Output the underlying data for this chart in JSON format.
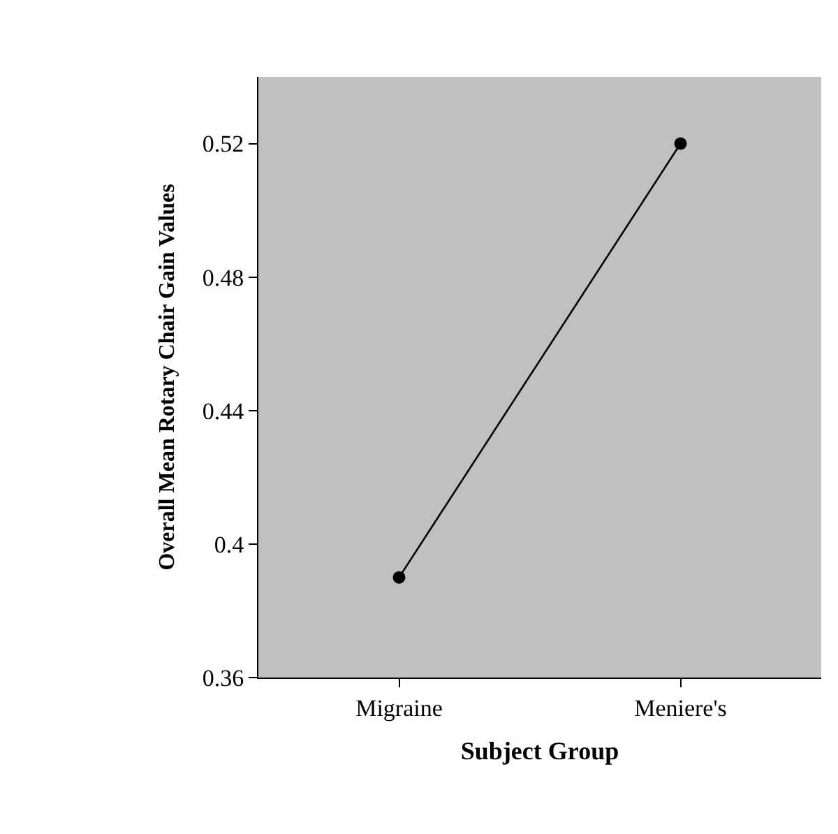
{
  "chart_data": {
    "type": "line",
    "xlabel": "Subject Group",
    "ylabel": "Overall Mean Rotary Chair Gain Values",
    "categories": [
      "Migraine",
      "Meniere's"
    ],
    "series": [
      {
        "color": "#000000",
        "values": [
          0.39,
          0.52
        ]
      }
    ],
    "ylim": [
      0.36,
      0.54
    ],
    "yticks": [
      0.36,
      {
        "value": 0.4,
        "label": "0.4"
      },
      0.44,
      0.48,
      0.52
    ],
    "grid": false,
    "marker": "circle",
    "line_style": "solid"
  }
}
